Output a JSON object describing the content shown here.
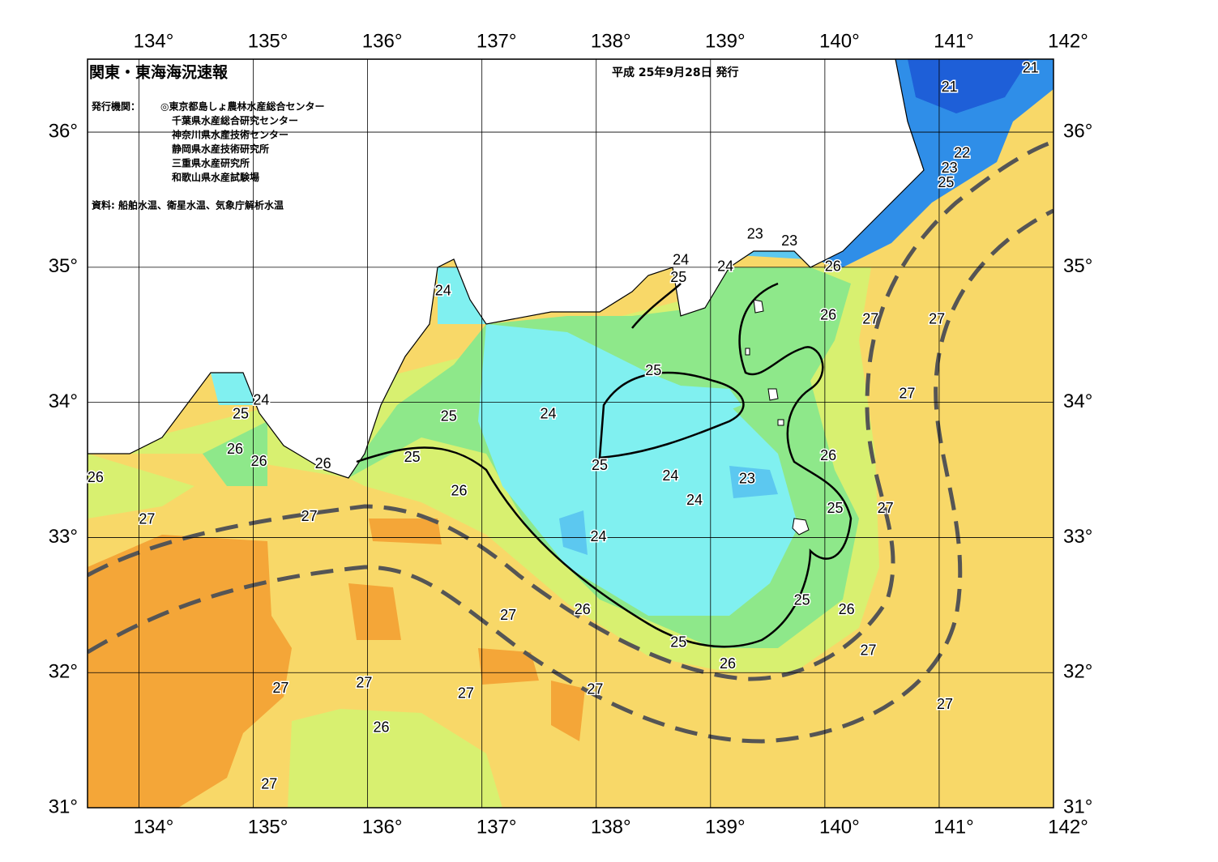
{
  "header": {
    "title": "関東・東海海況速報",
    "issue_date": "平成 25年9月28日 発行",
    "issuer_label": "発行機関：",
    "issuers": [
      "◎東京都島しょ農林水産総合センター",
      "千葉県水産総合研究センター",
      "神奈川県水産技術センター",
      "静岡県水産技術研究所",
      "三重県水産研究所",
      "和歌山県水産試験場"
    ],
    "sources": "資料: 船舶水温、衛星水温、気象庁解析水温"
  },
  "map": {
    "lonlim": [
      133.55,
      142
    ],
    "latlim": [
      31,
      36.54
    ],
    "lonticks": [
      {
        "value": 134,
        "label": "134°"
      },
      {
        "value": 135,
        "label": "135°"
      },
      {
        "value": 136,
        "label": "136°"
      },
      {
        "value": 137,
        "label": "137°"
      },
      {
        "value": 138,
        "label": "138°"
      },
      {
        "value": 139,
        "label": "139°"
      },
      {
        "value": 140,
        "label": "140°"
      },
      {
        "value": 141,
        "label": "141°"
      },
      {
        "value": 142,
        "label": "142°"
      }
    ],
    "latticks": [
      {
        "value": 31,
        "label": "31°"
      },
      {
        "value": 32,
        "label": "32°"
      },
      {
        "value": 33,
        "label": "33°"
      },
      {
        "value": 34,
        "label": "34°"
      },
      {
        "value": 35,
        "label": "35°"
      },
      {
        "value": 36,
        "label": "36°"
      }
    ],
    "contour_labels": [
      {
        "value": 21,
        "lon": 141.8,
        "lat": 36.47
      },
      {
        "value": 21,
        "lon": 141.09,
        "lat": 36.33
      },
      {
        "value": 22,
        "lon": 141.2,
        "lat": 35.84
      },
      {
        "value": 23,
        "lon": 141.09,
        "lat": 35.73
      },
      {
        "value": 25,
        "lon": 141.06,
        "lat": 35.62
      },
      {
        "value": 23,
        "lon": 139.39,
        "lat": 35.24
      },
      {
        "value": 23,
        "lon": 139.69,
        "lat": 35.19
      },
      {
        "value": 24,
        "lon": 138.74,
        "lat": 35.05
      },
      {
        "value": 25,
        "lon": 138.72,
        "lat": 34.92
      },
      {
        "value": 24,
        "lon": 139.13,
        "lat": 35.0
      },
      {
        "value": 26,
        "lon": 140.07,
        "lat": 35.0
      },
      {
        "value": 24,
        "lon": 136.66,
        "lat": 34.82
      },
      {
        "value": 26,
        "lon": 140.03,
        "lat": 34.64
      },
      {
        "value": 27,
        "lon": 140.4,
        "lat": 34.61
      },
      {
        "value": 27,
        "lon": 140.98,
        "lat": 34.61
      },
      {
        "value": 25,
        "lon": 138.5,
        "lat": 34.23
      },
      {
        "value": 27,
        "lon": 140.72,
        "lat": 34.06
      },
      {
        "value": 24,
        "lon": 135.07,
        "lat": 34.01
      },
      {
        "value": 25,
        "lon": 134.89,
        "lat": 33.91
      },
      {
        "value": 25,
        "lon": 136.71,
        "lat": 33.89
      },
      {
        "value": 24,
        "lon": 137.58,
        "lat": 33.91
      },
      {
        "value": 26,
        "lon": 134.84,
        "lat": 33.65
      },
      {
        "value": 26,
        "lon": 135.05,
        "lat": 33.56
      },
      {
        "value": 26,
        "lon": 135.61,
        "lat": 33.54
      },
      {
        "value": 26,
        "lon": 133.62,
        "lat": 33.44
      },
      {
        "value": 25,
        "lon": 136.39,
        "lat": 33.59
      },
      {
        "value": 25,
        "lon": 138.03,
        "lat": 33.53
      },
      {
        "value": 24,
        "lon": 138.65,
        "lat": 33.45
      },
      {
        "value": 23,
        "lon": 139.32,
        "lat": 33.43
      },
      {
        "value": 26,
        "lon": 140.03,
        "lat": 33.6
      },
      {
        "value": 26,
        "lon": 136.8,
        "lat": 33.34
      },
      {
        "value": 24,
        "lon": 138.86,
        "lat": 33.27
      },
      {
        "value": 25,
        "lon": 140.09,
        "lat": 33.21
      },
      {
        "value": 27,
        "lon": 140.53,
        "lat": 33.21
      },
      {
        "value": 27,
        "lon": 134.07,
        "lat": 33.13
      },
      {
        "value": 27,
        "lon": 135.49,
        "lat": 33.15
      },
      {
        "value": 24,
        "lon": 138.02,
        "lat": 33.0
      },
      {
        "value": 25,
        "lon": 139.8,
        "lat": 32.53
      },
      {
        "value": 26,
        "lon": 137.88,
        "lat": 32.46
      },
      {
        "value": 26,
        "lon": 140.19,
        "lat": 32.46
      },
      {
        "value": 27,
        "lon": 137.23,
        "lat": 32.42
      },
      {
        "value": 25,
        "lon": 138.72,
        "lat": 32.22
      },
      {
        "value": 27,
        "lon": 140.38,
        "lat": 32.16
      },
      {
        "value": 26,
        "lon": 139.15,
        "lat": 32.06
      },
      {
        "value": 27,
        "lon": 135.97,
        "lat": 31.92
      },
      {
        "value": 27,
        "lon": 135.24,
        "lat": 31.88
      },
      {
        "value": 27,
        "lon": 136.86,
        "lat": 31.84
      },
      {
        "value": 27,
        "lon": 137.99,
        "lat": 31.87
      },
      {
        "value": 27,
        "lon": 141.05,
        "lat": 31.76
      },
      {
        "value": 26,
        "lon": 136.12,
        "lat": 31.59
      },
      {
        "value": 27,
        "lon": 135.14,
        "lat": 31.17
      }
    ]
  }
}
